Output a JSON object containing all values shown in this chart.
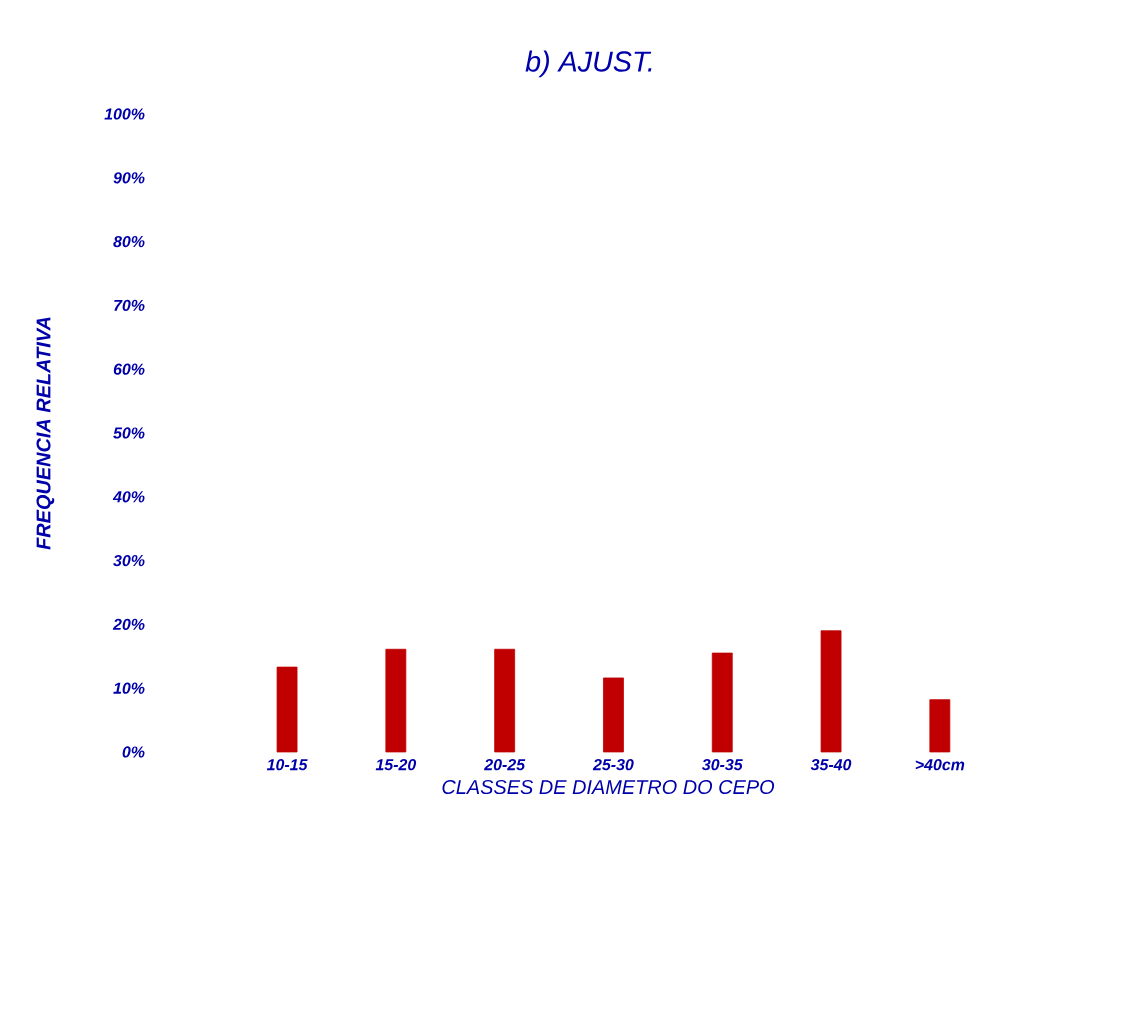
{
  "chart_data": {
    "type": "bar",
    "title": "b) AJUST.",
    "xlabel": "CLASSES DE DIAMETRO DO CEPO",
    "ylabel": "FREQUENCIA RELATIVA",
    "categories": [
      "10-15",
      "15-20",
      "20-25",
      "25-30",
      "30-35",
      "35-40",
      ">40cm"
    ],
    "values": [
      13.3,
      16.1,
      16.1,
      11.6,
      15.5,
      19.0,
      8.2
    ],
    "color": "#c00000",
    "ylim": [
      0,
      100
    ],
    "yticks": [
      {
        "value": 0,
        "label": "0%"
      },
      {
        "value": 10,
        "label": "10%"
      },
      {
        "value": 20,
        "label": "20%"
      },
      {
        "value": 30,
        "label": "30%"
      },
      {
        "value": 40,
        "label": "40%"
      },
      {
        "value": 50,
        "label": "50%"
      },
      {
        "value": 60,
        "label": "60%"
      },
      {
        "value": 70,
        "label": "70%"
      },
      {
        "value": 80,
        "label": "80%"
      },
      {
        "value": 90,
        "label": "90%"
      },
      {
        "value": 100,
        "label": "100%"
      }
    ]
  }
}
